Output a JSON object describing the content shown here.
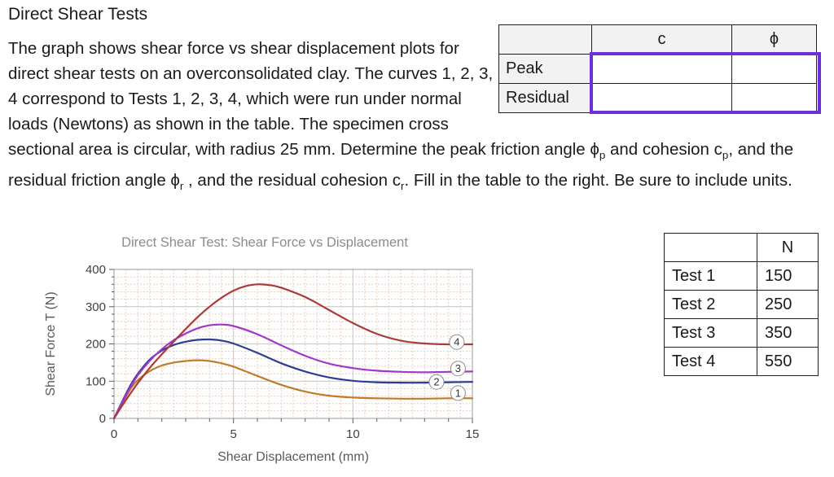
{
  "title": "Direct Shear Tests",
  "intro": {
    "segments": [
      "The graph shows shear force vs shear displacement plots for direct shear tests on an overconsolidated clay. The curves 1, 2, 3, 4 correspond to Tests 1, 2, 3, 4, which were run under normal loads (Newtons) as shown in the table. The specimen cross sectional area is circular, with radius 25 mm. Determine the peak friction angle ϕ",
      "p",
      " and cohesion c",
      "p",
      ",  and the residual friction angle ϕ",
      "r",
      " , and the residual cohesion c",
      "r",
      ". Fill in the table to the right. Be sure to include units."
    ]
  },
  "answer_table": {
    "col_c": "c",
    "col_phi": "ϕ",
    "row_peak": "Peak",
    "row_residual": "Residual",
    "cells": {
      "peak_c": "",
      "peak_phi": "",
      "residual_c": "",
      "residual_phi": ""
    },
    "highlight_color": "#6c2fd9"
  },
  "loads_table": {
    "header": "N",
    "rows": [
      {
        "label": "Test 1",
        "value": "150"
      },
      {
        "label": "Test 2",
        "value": "250"
      },
      {
        "label": "Test 3",
        "value": "350"
      },
      {
        "label": "Test 4",
        "value": "550"
      }
    ]
  },
  "chart_data": {
    "type": "line",
    "title": "Direct Shear Test: Shear Force vs Displacement",
    "xlabel": "Shear Displacement (mm)",
    "ylabel": "Shear Force T (N)",
    "xlim": [
      0,
      15
    ],
    "ylim": [
      0,
      400
    ],
    "x_ticks": [
      0,
      5,
      10,
      15
    ],
    "y_ticks": [
      0,
      100,
      200,
      300,
      400
    ],
    "x_minor_grid": 0.5,
    "y_minor_grid": 20,
    "x_minor_tick": 1,
    "y_minor_tick": 20,
    "grid": true,
    "legend": "numbered-circle-callouts-right",
    "colors": {
      "minor_grid": "#e7cdbc",
      "major_grid": "#c9c9c9",
      "frame": "#9a9a9a",
      "axis": "#595959",
      "tick_label": "#404040",
      "title": "#8c8c8c",
      "axis_label": "#595959",
      "callout_stroke": "#8c8c8c"
    },
    "series": [
      {
        "name": "1",
        "test": "Test 1",
        "normal_load_N": 150,
        "color": "#bf7d2a",
        "peak_force_N": 156,
        "residual_force_N": 54,
        "x": [
          0,
          0.3,
          0.7,
          1,
          1.5,
          2,
          2.5,
          3,
          3.5,
          4,
          4.5,
          5,
          6,
          7,
          8,
          9,
          10,
          11,
          12,
          13,
          14,
          15
        ],
        "y": [
          0,
          35,
          80,
          103,
          127,
          142,
          150,
          154,
          156,
          154,
          148,
          139,
          114,
          90,
          72,
          61,
          56,
          54,
          53,
          53,
          54,
          54
        ],
        "callout_xy": [
          14.4,
          68
        ]
      },
      {
        "name": "2",
        "test": "Test 2",
        "normal_load_N": 250,
        "color": "#2e3d94",
        "peak_force_N": 212,
        "residual_force_N": 97,
        "x": [
          0,
          0.3,
          0.7,
          1,
          1.5,
          2,
          2.5,
          3,
          3.5,
          4,
          4.5,
          5,
          6,
          7,
          8,
          9,
          10,
          11,
          12,
          13,
          14,
          15
        ],
        "y": [
          0,
          40,
          90,
          120,
          158,
          182,
          197,
          206,
          211,
          212,
          209,
          201,
          176,
          148,
          126,
          110,
          101,
          97,
          96,
          96,
          97,
          98
        ],
        "callout_xy": [
          13.5,
          98
        ]
      },
      {
        "name": "3",
        "test": "Test 3",
        "normal_load_N": 350,
        "color": "#a238c8",
        "peak_force_N": 252,
        "residual_force_N": 125,
        "x": [
          0,
          0.3,
          0.7,
          1,
          1.5,
          2,
          2.5,
          3,
          3.5,
          4,
          4.5,
          5,
          6,
          7,
          8,
          9,
          10,
          11,
          12,
          13,
          14,
          15
        ],
        "y": [
          0,
          38,
          85,
          116,
          155,
          186,
          210,
          228,
          242,
          250,
          252,
          248,
          226,
          196,
          168,
          147,
          135,
          128,
          125,
          124,
          125,
          126
        ],
        "callout_xy": [
          14.4,
          134
        ]
      },
      {
        "name": "4",
        "test": "Test 4",
        "normal_load_N": 550,
        "color": "#ab3a3a",
        "peak_force_N": 360,
        "residual_force_N": 199,
        "x": [
          0,
          0.3,
          0.7,
          1,
          1.5,
          2,
          2.5,
          3,
          3.5,
          4,
          4.5,
          5,
          5.5,
          6,
          6.5,
          7,
          8,
          9,
          10,
          11,
          12,
          13,
          14,
          15
        ],
        "y": [
          0,
          30,
          68,
          95,
          136,
          172,
          206,
          240,
          272,
          300,
          324,
          343,
          355,
          360,
          358,
          351,
          326,
          291,
          256,
          227,
          209,
          201,
          199,
          199
        ],
        "callout_xy": [
          14.35,
          205
        ]
      }
    ]
  }
}
